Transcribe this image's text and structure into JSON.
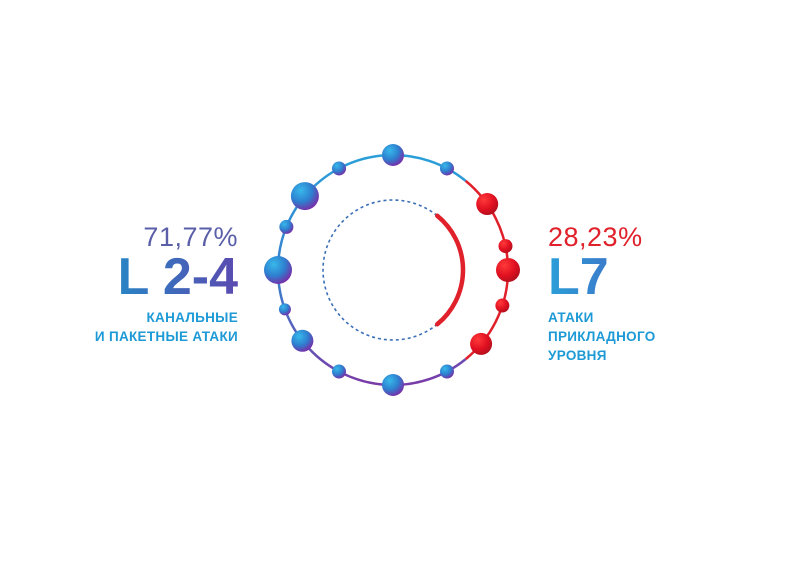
{
  "chart_data": {
    "type": "pie",
    "series": [
      {
        "name": "L 2-4",
        "value": 71.77,
        "value_label": "71,77%",
        "description": [
          "КАНАЛЬНЫЕ",
          "И ПАКЕТНЫЕ АТАКИ"
        ],
        "color": "#2a8fd0"
      },
      {
        "name": "L7",
        "value": 28.23,
        "value_label": "28,23%",
        "description": [
          "АТАКИ",
          "ПРИКЛАДНОГО",
          "УРОВНЯ"
        ],
        "color": "#e0202a"
      }
    ],
    "title": "",
    "legend": "side labels"
  },
  "colors": {
    "blue": "#2a9fd8",
    "purple": "#6a3fa8",
    "red": "#e0202a",
    "text_blue": "#1d9ad6",
    "pct_purple": "#5a5fa8"
  }
}
